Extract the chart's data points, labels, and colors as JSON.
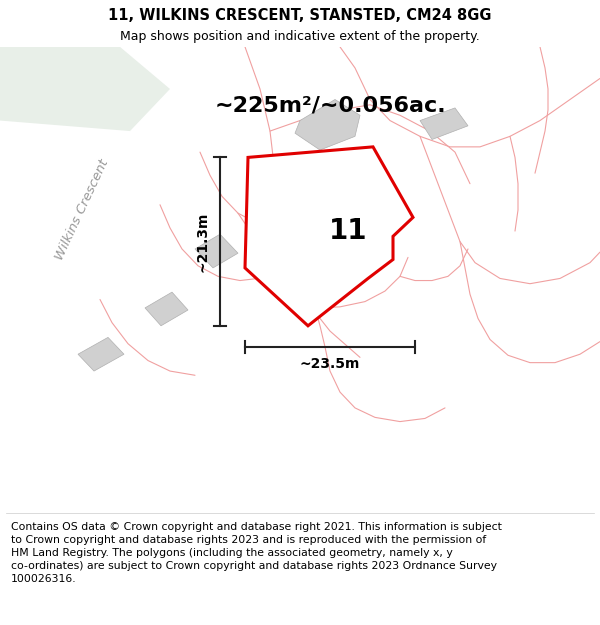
{
  "title_line1": "11, WILKINS CRESCENT, STANSTED, CM24 8GG",
  "title_line2": "Map shows position and indicative extent of the property.",
  "footer": "Contains OS data © Crown copyright and database right 2021. This information is subject\nto Crown copyright and database rights 2023 and is reproduced with the permission of\nHM Land Registry. The polygons (including the associated geometry, namely x, y\nco-ordinates) are subject to Crown copyright and database rights 2023 Ordnance Survey\n100026316.",
  "area_label": "~225m²/~0.056ac.",
  "number_label": "11",
  "dim_width": "~23.5m",
  "dim_height": "~21.3m",
  "road_label": "Wilkins Crescent",
  "bg_color": "#ffffff",
  "plot_color_red": "#e00000",
  "title_fontsize": 10.5,
  "footer_fontsize": 7.8,
  "area_fontsize": 16,
  "number_fontsize": 20,
  "dim_fontsize": 10,
  "road_fontsize": 9.5,
  "green_color": "#e8efe8",
  "road_gray": "#cccccc",
  "building_gray": "#d0d0d0",
  "pink_line": "#f0a0a0",
  "dim_line_color": "#222222"
}
